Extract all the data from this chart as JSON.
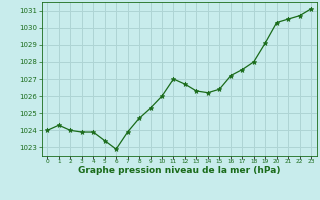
{
  "x": [
    0,
    1,
    2,
    3,
    4,
    5,
    6,
    7,
    8,
    9,
    10,
    11,
    12,
    13,
    14,
    15,
    16,
    17,
    18,
    19,
    20,
    21,
    22,
    23
  ],
  "y": [
    1024.0,
    1024.3,
    1024.0,
    1023.9,
    1023.9,
    1023.4,
    1022.9,
    1023.9,
    1024.7,
    1025.3,
    1026.0,
    1027.0,
    1026.7,
    1026.3,
    1026.2,
    1026.4,
    1027.2,
    1027.55,
    1028.0,
    1029.1,
    1030.3,
    1030.5,
    1030.7,
    1031.1
  ],
  "line_color": "#1a6b1a",
  "marker": "*",
  "marker_size": 3.5,
  "bg_color": "#c8ecec",
  "grid_color": "#aed4d4",
  "xlabel": "Graphe pression niveau de la mer (hPa)",
  "xlabel_color": "#1a6b1a",
  "tick_color": "#1a6b1a",
  "ylim": [
    1022.5,
    1031.5
  ],
  "yticks": [
    1023,
    1024,
    1025,
    1026,
    1027,
    1028,
    1029,
    1030,
    1031
  ],
  "xticks": [
    0,
    1,
    2,
    3,
    4,
    5,
    6,
    7,
    8,
    9,
    10,
    11,
    12,
    13,
    14,
    15,
    16,
    17,
    18,
    19,
    20,
    21,
    22,
    23
  ],
  "xlim": [
    -0.5,
    23.5
  ]
}
